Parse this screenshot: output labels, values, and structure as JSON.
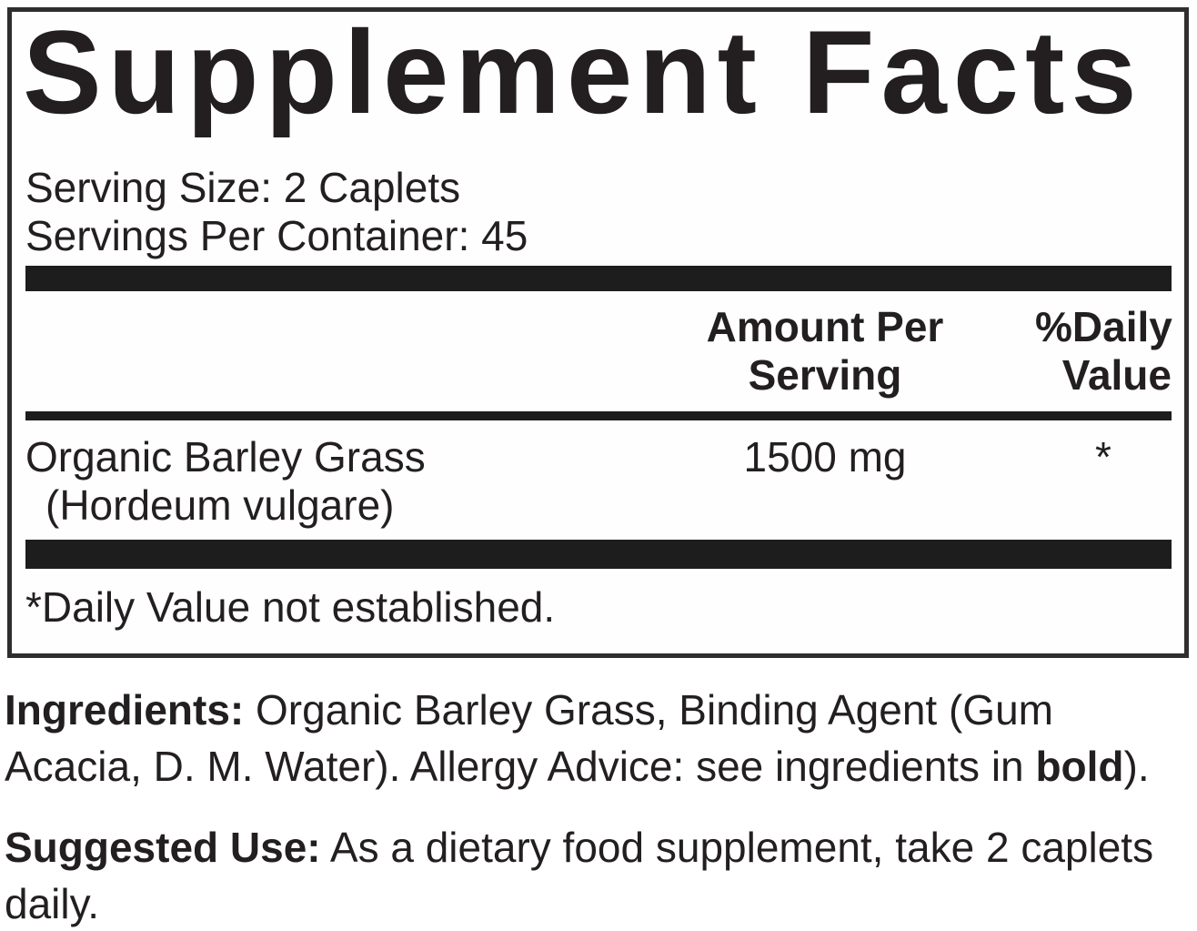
{
  "colors": {
    "ink": "#231f20",
    "bar": "#1d1d1d",
    "border": "#2e2e2e",
    "background": "#ffffff"
  },
  "panel": {
    "title": "Supplement Facts",
    "serving_size": "Serving Size: 2 Caplets",
    "servings_per_container": "Servings Per Container: 45",
    "amount_header_line1": "Amount Per",
    "amount_header_line2": "Serving",
    "dv_header_line1": "%Daily",
    "dv_header_line2": "Value",
    "rows": [
      {
        "name_line1": "Organic Barley Grass",
        "name_line2": "(Hordeum vulgare)",
        "amount": "1500 mg",
        "daily_value": "*"
      }
    ],
    "footnote": "*Daily Value not established."
  },
  "ingredients": {
    "label": "Ingredients:",
    "text_before_bold": " Organic Barley Grass, Binding Agent (Gum Acacia, D. M. Water). Allergy Advice: see ingredients in ",
    "bold_word": "bold",
    "text_after_bold": ")."
  },
  "suggested_use": {
    "label": "Suggested Use:",
    "text": " As a dietary food supplement, take 2 caplets daily."
  }
}
